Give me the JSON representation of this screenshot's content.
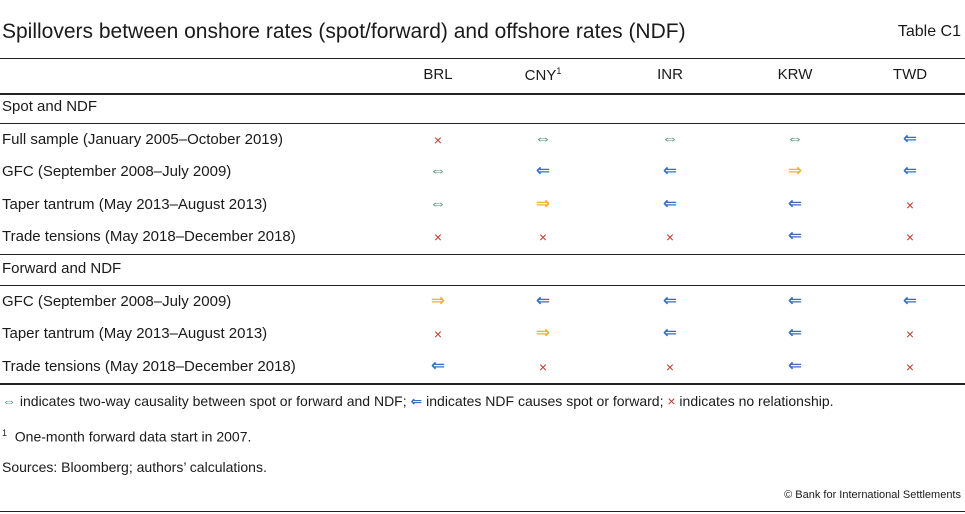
{
  "title": "Spillovers between onshore rates (spot/forward) and offshore rates (NDF)",
  "table_no": "Table C1",
  "columns": [
    "BRL",
    "CNY",
    "INR",
    "KRW",
    "TWD"
  ],
  "cny_sup": "1",
  "symbols": {
    "two": "⇔",
    "left": "⇐",
    "right": "⇒",
    "none": "×"
  },
  "colors": {
    "two": "#3f8a6a",
    "left": "#3a6fbf",
    "right": "#f0b030",
    "none": "#c0392b"
  },
  "sections": [
    {
      "title": "Spot and NDF",
      "rows": [
        {
          "label": "Full sample (January 2005–October 2019)",
          "cells": [
            "none",
            "two",
            "two",
            "two",
            "left"
          ]
        },
        {
          "label": "GFC (September 2008–July 2009)",
          "cells": [
            "two",
            "left",
            "left",
            "right",
            "left"
          ]
        },
        {
          "label": "Taper tantrum (May 2013–August 2013)",
          "cells": [
            "two",
            "right",
            "left",
            "left",
            "none"
          ]
        },
        {
          "label": "Trade tensions (May 2018–December 2018)",
          "cells": [
            "none",
            "none",
            "none",
            "left",
            "none"
          ]
        }
      ]
    },
    {
      "title": "Forward and NDF",
      "rows": [
        {
          "label": "GFC (September 2008–July 2009)",
          "cells": [
            "right",
            "left",
            "left",
            "left",
            "left"
          ]
        },
        {
          "label": "Taper tantrum (May 2013–August 2013)",
          "cells": [
            "none",
            "right",
            "left",
            "left",
            "none"
          ]
        },
        {
          "label": "Trade tensions (May 2018–December 2018)",
          "cells": [
            "left",
            "none",
            "none",
            "left",
            "none"
          ]
        }
      ]
    }
  ],
  "legend": {
    "two": " indicates two-way causality between spot or forward and NDF; ",
    "left": " indicates NDF causes spot or forward; ",
    "none": " indicates no relationship."
  },
  "footnote_mark": "1",
  "footnote": "One-month forward data start in 2007.",
  "sources": "Sources: Bloomberg; authors’ calculations.",
  "copyright": "© Bank for International Settlements"
}
